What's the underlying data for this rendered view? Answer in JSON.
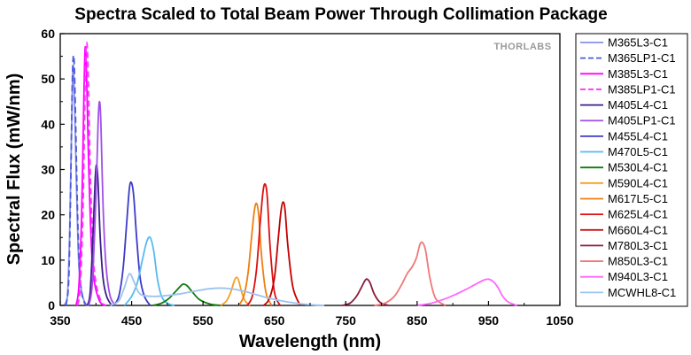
{
  "chart_data": {
    "type": "line",
    "title": "Spectra Scaled to Total Beam Power Through Collimation Package",
    "xlabel": "Wavelength (nm)",
    "ylabel": "Spectral Flux (mW/nm)",
    "xlim": [
      350,
      1050
    ],
    "ylim": [
      0,
      60
    ],
    "xticks": [
      350,
      450,
      550,
      650,
      750,
      850,
      950,
      1050
    ],
    "yticks": [
      0,
      10,
      20,
      30,
      40,
      50,
      60
    ],
    "grid": false,
    "legend_position": "right",
    "watermark": "THORLABS",
    "series": [
      {
        "name": "M365L3-C1",
        "color": "#8a8fe6",
        "dash": false,
        "x": [
          355,
          360,
          363,
          366,
          368,
          370,
          373,
          376,
          380,
          385,
          390
        ],
        "y": [
          0,
          2,
          15,
          40,
          53,
          45,
          25,
          9,
          3,
          0.5,
          0
        ]
      },
      {
        "name": "M365LP1-C1",
        "color": "#4a5adc",
        "dash": true,
        "x": [
          358,
          362,
          365,
          367,
          369,
          371,
          374,
          377,
          381,
          386
        ],
        "y": [
          0,
          6,
          30,
          50,
          55,
          45,
          22,
          8,
          2,
          0
        ]
      },
      {
        "name": "M385L3-C1",
        "color": "#ff00ff",
        "dash": false,
        "x": [
          372,
          376,
          380,
          383,
          385,
          387,
          390,
          394,
          398,
          405,
          412
        ],
        "y": [
          0,
          4,
          20,
          45,
          57,
          50,
          30,
          12,
          5,
          1,
          0
        ]
      },
      {
        "name": "M385LP1-C1",
        "color": "#ff33ff",
        "dash": true,
        "x": [
          374,
          378,
          382,
          385,
          387,
          389,
          392,
          396,
          400,
          407,
          414
        ],
        "y": [
          0,
          4,
          22,
          50,
          58,
          52,
          30,
          12,
          5,
          1,
          0
        ]
      },
      {
        "name": "M405L4-C1",
        "color": "#3a1f86",
        "dash": false,
        "x": [
          388,
          392,
          396,
          399,
          401,
          403,
          406,
          410,
          415,
          422
        ],
        "y": [
          0,
          3,
          16,
          28,
          31,
          27,
          15,
          6,
          2,
          0
        ]
      },
      {
        "name": "M405LP1-C1",
        "color": "#a050e6",
        "dash": false,
        "x": [
          390,
          395,
          400,
          403,
          405,
          407,
          410,
          414,
          420,
          428
        ],
        "y": [
          0,
          5,
          24,
          40,
          45,
          40,
          22,
          9,
          2,
          0
        ]
      },
      {
        "name": "M455L4-C1",
        "color": "#3b3bc8",
        "dash": false,
        "x": [
          425,
          432,
          438,
          443,
          447,
          450,
          453,
          457,
          462,
          468,
          476
        ],
        "y": [
          0,
          2,
          8,
          18,
          26,
          27,
          24,
          15,
          6,
          2,
          0
        ]
      },
      {
        "name": "M470L5-C1",
        "color": "#55bbf0",
        "dash": false,
        "x": [
          440,
          450,
          458,
          465,
          471,
          476,
          481,
          486,
          492,
          500,
          510
        ],
        "y": [
          0,
          2,
          5,
          10,
          14,
          15,
          12,
          6,
          2,
          0.5,
          0
        ]
      },
      {
        "name": "M530L4-C1",
        "color": "#0f7a0f",
        "dash": false,
        "x": [
          480,
          492,
          502,
          510,
          517,
          522,
          528,
          535,
          545,
          560,
          575
        ],
        "y": [
          0,
          0.5,
          1.5,
          2.8,
          4,
          4.7,
          4.3,
          3,
          1.3,
          0.3,
          0
        ]
      },
      {
        "name": "M590L4-C1",
        "color": "#f5a020",
        "dash": false,
        "x": [
          575,
          583,
          589,
          594,
          597,
          600,
          604,
          609,
          616
        ],
        "y": [
          0,
          1,
          3,
          5.5,
          6.2,
          5.5,
          3,
          1,
          0
        ]
      },
      {
        "name": "M617L5-C1",
        "color": "#ef7f10",
        "dash": false,
        "x": [
          600,
          607,
          613,
          618,
          622,
          625,
          628,
          632,
          638,
          646
        ],
        "y": [
          0,
          2,
          7,
          15,
          21,
          22.5,
          20,
          11,
          3,
          0
        ]
      },
      {
        "name": "M625L4-C1",
        "color": "#dd1010",
        "dash": false,
        "x": [
          612,
          619,
          625,
          630,
          634,
          637,
          640,
          644,
          650,
          658
        ],
        "y": [
          0,
          2,
          8,
          18,
          25,
          26.8,
          24,
          13,
          3,
          0
        ]
      },
      {
        "name": "M660L4-C1",
        "color": "#c40000",
        "dash": false,
        "x": [
          635,
          643,
          650,
          655,
          659,
          662,
          665,
          669,
          676,
          686
        ],
        "y": [
          0,
          1.5,
          6,
          14,
          20.5,
          22.8,
          21,
          13,
          4,
          0
        ]
      },
      {
        "name": "M780L3-C1",
        "color": "#8b1a3a",
        "dash": false,
        "x": [
          745,
          756,
          765,
          772,
          777,
          780,
          784,
          790,
          798,
          810
        ],
        "y": [
          0,
          0.5,
          2,
          4,
          5.5,
          5.8,
          5,
          2.5,
          0.7,
          0
        ]
      },
      {
        "name": "M850L3-C1",
        "color": "#f07878",
        "dash": false,
        "x": [
          790,
          805,
          818,
          828,
          836,
          843,
          849,
          854,
          858,
          862,
          868,
          876,
          890
        ],
        "y": [
          0,
          0.5,
          2,
          4.5,
          7,
          8.5,
          10.5,
          13.5,
          13.8,
          12,
          6,
          1.5,
          0
        ]
      },
      {
        "name": "M940L3-C1",
        "color": "#ff66ff",
        "dash": false,
        "x": [
          850,
          870,
          890,
          905,
          918,
          930,
          942,
          950,
          957,
          963,
          970,
          978,
          990
        ],
        "y": [
          0,
          0.5,
          1.5,
          2.5,
          3.5,
          4.5,
          5.5,
          5.8,
          5.2,
          4,
          2,
          0.7,
          0
        ]
      },
      {
        "name": "MCWHL8-C1",
        "color": "#9bc3f0",
        "dash": false,
        "x": [
          420,
          432,
          440,
          447,
          454,
          462,
          480,
          500,
          520,
          540,
          560,
          580,
          600,
          620,
          640,
          660,
          690,
          720
        ],
        "y": [
          0,
          1,
          4,
          7,
          5,
          2.5,
          2,
          2.2,
          2.6,
          3.2,
          3.7,
          3.8,
          3.4,
          2.6,
          1.7,
          1,
          0.3,
          0
        ]
      }
    ]
  }
}
